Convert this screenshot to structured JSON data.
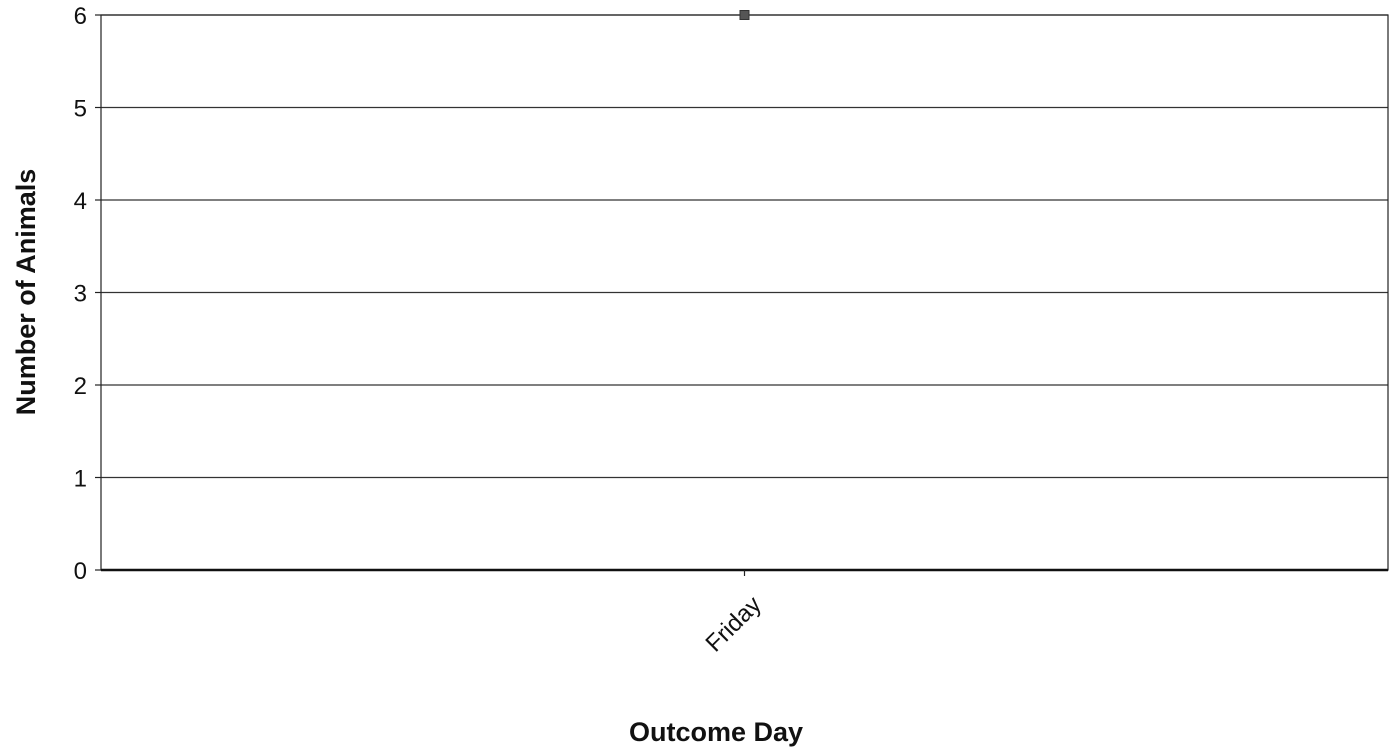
{
  "chart_data": {
    "type": "scatter",
    "title": "",
    "xlabel": "Outcome Day",
    "ylabel": "Number of Animals",
    "categories": [
      "Friday"
    ],
    "series": [
      {
        "values": [
          6
        ],
        "color": "#555555"
      }
    ],
    "ylim": [
      0,
      6
    ],
    "yticks": [
      "0",
      "1",
      "2",
      "3",
      "4",
      "5",
      "6"
    ],
    "grid": true,
    "legend": "none",
    "marker": "square"
  }
}
